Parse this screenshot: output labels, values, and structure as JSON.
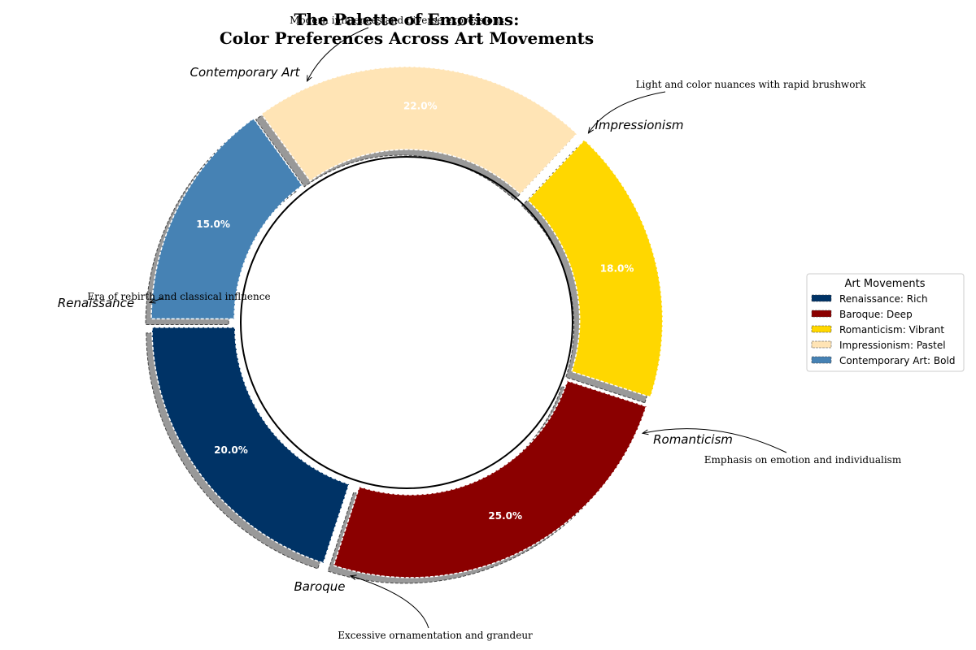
{
  "chart_data": {
    "type": "pie",
    "title_line1": "The Palette of Emotions:",
    "title_line2": "Color Preferences Across Art Movements",
    "categories": [
      "Renaissance",
      "Baroque",
      "Romanticism",
      "Impressionism",
      "Contemporary Art"
    ],
    "values": [
      20,
      25,
      18,
      22,
      15
    ],
    "value_labels": [
      "20.0%",
      "25.0%",
      "18.0%",
      "22.0%",
      "15.0%"
    ],
    "colors": [
      "#003366",
      "#8B0000",
      "#FFD700",
      "#FFE4B5",
      "#4682B4"
    ],
    "annotations": [
      "Era of rebirth and classical influence",
      "Excessive ornamentation and grandeur",
      "Emphasis on emotion and individualism",
      "Light and color nuances with rapid brushwork",
      "Modern influences and diverse expressions"
    ],
    "legend": {
      "title": "Art Movements",
      "placement": "right",
      "entries": [
        "Renaissance: Rich",
        "Baroque: Deep",
        "Romanticism: Vibrant",
        "Impressionism: Pastel",
        "Contemporary Art: Bold"
      ]
    },
    "style": "donut"
  }
}
